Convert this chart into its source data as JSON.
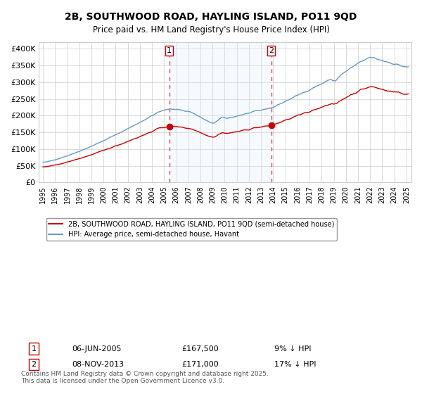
{
  "title": "2B, SOUTHWOOD ROAD, HAYLING ISLAND, PO11 9QD",
  "subtitle": "Price paid vs. HM Land Registry's House Price Index (HPI)",
  "legend_line1": "2B, SOUTHWOOD ROAD, HAYLING ISLAND, PO11 9QD (semi-detached house)",
  "legend_line2": "HPI: Average price, semi-detached house, Havant",
  "marker1_date": "06-JUN-2005",
  "marker1_price": 167500,
  "marker1_label": "9% ↓ HPI",
  "marker2_date": "08-NOV-2013",
  "marker2_price": 171000,
  "marker2_label": "17% ↓ HPI",
  "footnote": "Contains HM Land Registry data © Crown copyright and database right 2025.\nThis data is licensed under the Open Government Licence v3.0.",
  "red_color": "#cc0000",
  "blue_color": "#6699cc",
  "shade_color": "#ddeeff",
  "background_color": "#ffffff",
  "grid_color": "#cccccc",
  "ylim": [
    0,
    420000
  ],
  "yticks": [
    0,
    50000,
    100000,
    150000,
    200000,
    250000,
    300000,
    350000,
    400000
  ],
  "ytick_labels": [
    "£0",
    "£50K",
    "£100K",
    "£150K",
    "£200K",
    "£250K",
    "£300K",
    "£350K",
    "£400K"
  ]
}
